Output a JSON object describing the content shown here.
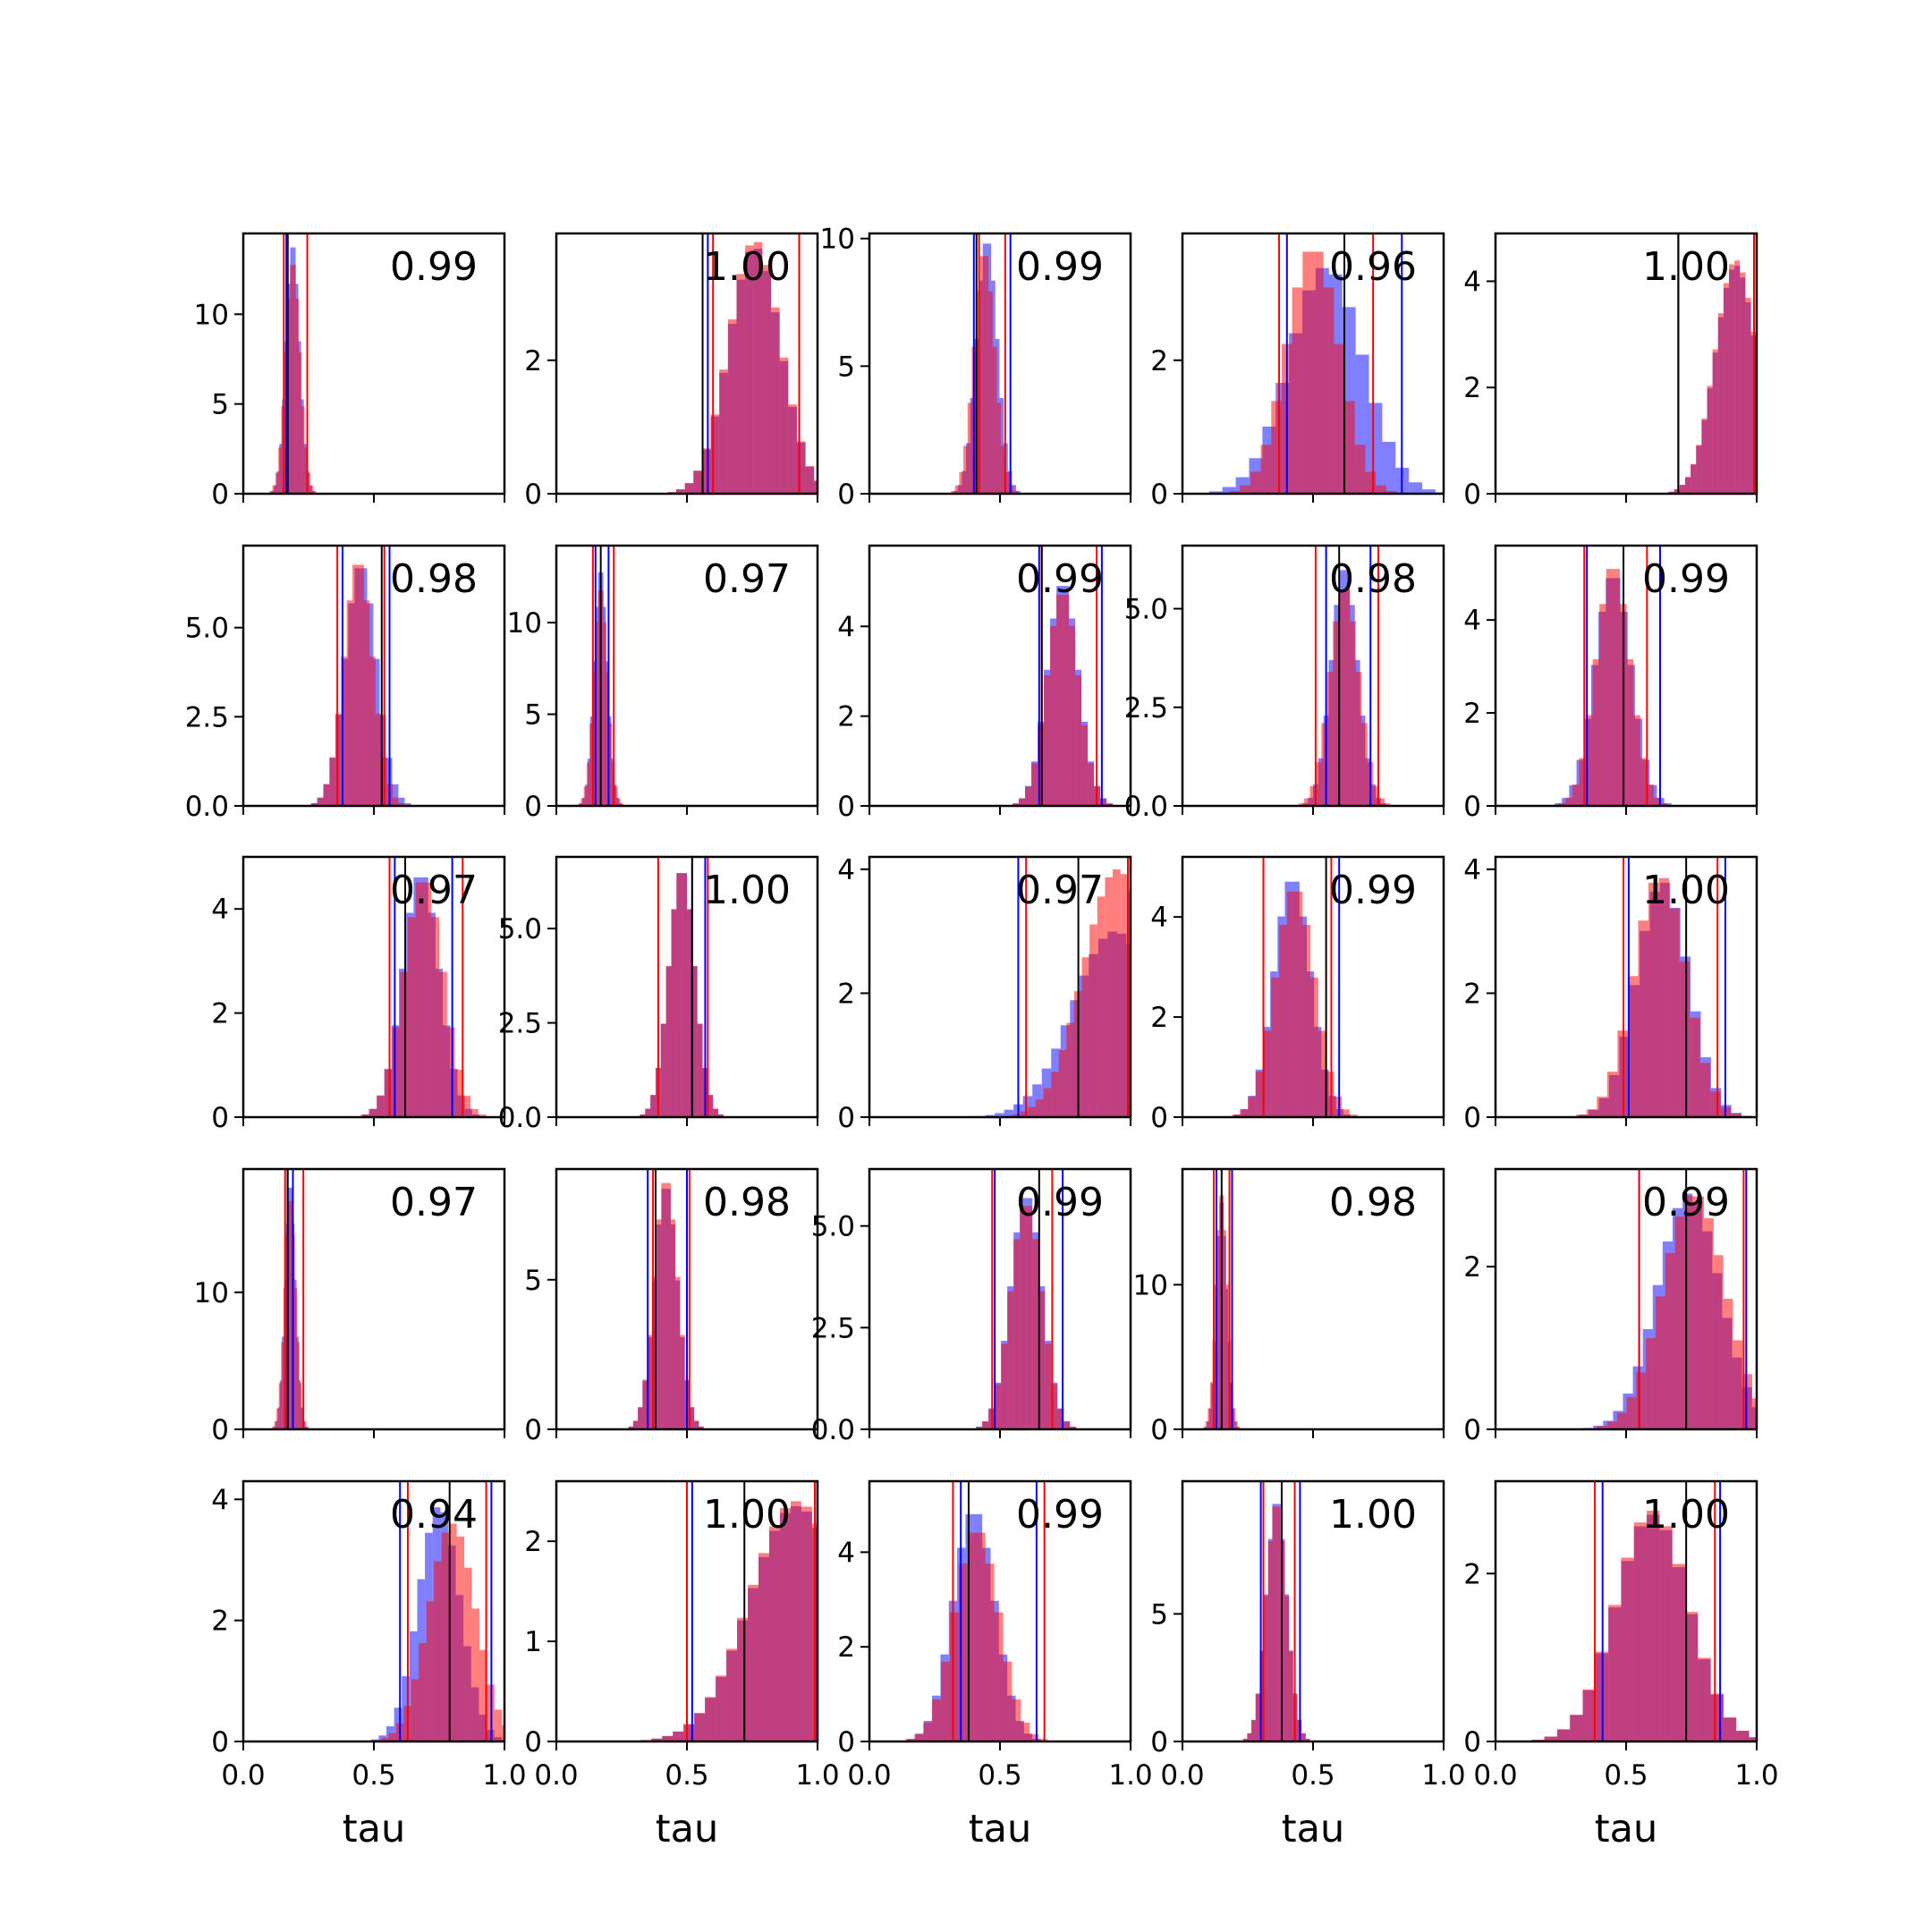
{
  "chart_data": {
    "type": "bar",
    "description_grid": "5 x 5 grid of overlaid histograms",
    "xlabel": "tau",
    "xlim": [
      0,
      1
    ],
    "x_ticks": [
      "0.0",
      "0.5",
      "1.0"
    ],
    "grid": false,
    "colors": {
      "blue": "#0000ff",
      "red": "#ff0000",
      "overlap": "#c0396b",
      "mean_line": "#000000"
    },
    "panels": [
      {
        "label": "0.99",
        "ylim": [
          0,
          14.5
        ],
        "yticks": [
          0,
          5,
          10
        ],
        "ytick_labels": [
          "0",
          "5",
          "10"
        ],
        "blue": {
          "center": 0.19,
          "sd": 0.026,
          "peak": 14.0
        },
        "red": {
          "center": 0.19,
          "sd": 0.028,
          "peak": 13.0
        },
        "blue_lines": [
          0.165,
          0.17
        ],
        "red_lines": [
          0.155,
          0.245
        ],
        "mean": 0.17
      },
      {
        "label": "1.00",
        "ylim": [
          0,
          3.9
        ],
        "yticks": [
          0,
          2
        ],
        "ytick_labels": [
          "0",
          "2"
        ],
        "blue": {
          "center": 0.76,
          "sd": 0.1,
          "peak": 3.7
        },
        "red": {
          "center": 0.76,
          "sd": 0.1,
          "peak": 3.8
        },
        "blue_lines": [
          0.58,
          0.93
        ],
        "red_lines": [
          0.6,
          0.93
        ],
        "mean": 0.56
      },
      {
        "label": "0.99",
        "ylim": [
          0,
          10.2
        ],
        "yticks": [
          0,
          5,
          10
        ],
        "ytick_labels": [
          "0",
          "5",
          "10"
        ],
        "blue": {
          "center": 0.45,
          "sd": 0.04,
          "peak": 10.0
        },
        "red": {
          "center": 0.44,
          "sd": 0.04,
          "peak": 9.5
        },
        "blue_lines": [
          0.4,
          0.54
        ],
        "red_lines": [
          0.42,
          0.52
        ],
        "mean": 0.41
      },
      {
        "label": "0.96",
        "ylim": [
          0,
          3.9
        ],
        "yticks": [
          0,
          2
        ],
        "ytick_labels": [
          "0",
          "2"
        ],
        "blue": {
          "center": 0.55,
          "sd": 0.14,
          "peak": 3.4
        },
        "red": {
          "center": 0.5,
          "sd": 0.1,
          "peak": 3.7
        },
        "blue_lines": [
          0.4,
          0.84
        ],
        "red_lines": [
          0.37,
          0.73
        ],
        "mean": 0.62
      },
      {
        "label": "1.00",
        "ylim": [
          0,
          4.9
        ],
        "yticks": [
          0,
          2,
          4
        ],
        "ytick_labels": [
          "0",
          "2",
          "4"
        ],
        "blue": {
          "center": 0.92,
          "sd": 0.08,
          "peak": 4.3
        },
        "red": {
          "center": 0.92,
          "sd": 0.08,
          "peak": 4.4
        },
        "blue_lines": [
          0.7,
          0.99
        ],
        "red_lines": [
          0.7,
          0.99
        ],
        "mean": 0.7
      },
      {
        "label": "0.98",
        "ylim": [
          0,
          7.3
        ],
        "yticks": [
          0,
          2.5,
          5.0
        ],
        "ytick_labels": [
          "0.0",
          "2.5",
          "5.0"
        ],
        "blue": {
          "center": 0.45,
          "sd": 0.06,
          "peak": 6.8
        },
        "red": {
          "center": 0.44,
          "sd": 0.055,
          "peak": 6.9
        },
        "blue_lines": [
          0.38,
          0.56
        ],
        "red_lines": [
          0.36,
          0.54
        ],
        "mean": 0.53
      },
      {
        "label": "0.97",
        "ylim": [
          0,
          14.2
        ],
        "yticks": [
          0,
          5,
          10
        ],
        "ytick_labels": [
          "0",
          "5",
          "10"
        ],
        "blue": {
          "center": 0.17,
          "sd": 0.025,
          "peak": 13.0
        },
        "red": {
          "center": 0.17,
          "sd": 0.027,
          "peak": 12.0
        },
        "blue_lines": [
          0.15,
          0.2
        ],
        "red_lines": [
          0.14,
          0.22
        ],
        "mean": 0.17
      },
      {
        "label": "0.99",
        "ylim": [
          0,
          5.8
        ],
        "yticks": [
          0,
          2,
          4
        ],
        "ytick_labels": [
          "0",
          "2",
          "4"
        ],
        "blue": {
          "center": 0.74,
          "sd": 0.06,
          "peak": 5.0
        },
        "red": {
          "center": 0.74,
          "sd": 0.06,
          "peak": 4.8
        },
        "blue_lines": [
          0.65,
          0.89
        ],
        "red_lines": [
          0.66,
          0.87
        ],
        "mean": 0.66
      },
      {
        "label": "0.98",
        "ylim": [
          0,
          6.6
        ],
        "yticks": [
          0,
          2.5,
          5.0
        ],
        "ytick_labels": [
          "0.0",
          "2.5",
          "5.0"
        ],
        "blue": {
          "center": 0.62,
          "sd": 0.05,
          "peak": 6.1
        },
        "red": {
          "center": 0.62,
          "sd": 0.055,
          "peak": 5.6
        },
        "blue_lines": [
          0.55,
          0.72
        ],
        "red_lines": [
          0.51,
          0.75
        ],
        "mean": 0.6
      },
      {
        "label": "0.99",
        "ylim": [
          0,
          5.6
        ],
        "yticks": [
          0,
          2,
          4
        ],
        "ytick_labels": [
          "0",
          "2",
          "4"
        ],
        "blue": {
          "center": 0.45,
          "sd": 0.07,
          "peak": 5.0
        },
        "red": {
          "center": 0.45,
          "sd": 0.065,
          "peak": 5.2
        },
        "blue_lines": [
          0.35,
          0.63
        ],
        "red_lines": [
          0.34,
          0.58
        ],
        "mean": 0.49
      },
      {
        "label": "0.97",
        "ylim": [
          0,
          5.0
        ],
        "yticks": [
          0,
          2,
          4
        ],
        "ytick_labels": [
          "0",
          "2",
          "4"
        ],
        "blue": {
          "center": 0.68,
          "sd": 0.07,
          "peak": 4.7
        },
        "red": {
          "center": 0.69,
          "sd": 0.075,
          "peak": 4.6
        },
        "blue_lines": [
          0.58,
          0.8
        ],
        "red_lines": [
          0.56,
          0.84
        ],
        "mean": 0.62
      },
      {
        "label": "1.00",
        "ylim": [
          0,
          6.9
        ],
        "yticks": [
          0,
          2.5,
          5.0
        ],
        "ytick_labels": [
          "0.0",
          "2.5",
          "5.0"
        ],
        "blue": {
          "center": 0.48,
          "sd": 0.05,
          "peak": 6.6
        },
        "red": {
          "center": 0.48,
          "sd": 0.05,
          "peak": 6.6
        },
        "blue_lines": [
          0.52,
          0.57
        ],
        "red_lines": [
          0.39,
          0.58
        ],
        "mean": 0.52
      },
      {
        "label": "0.97",
        "ylim": [
          0,
          4.2
        ],
        "yticks": [
          0,
          2,
          4
        ],
        "ytick_labels": [
          "0",
          "2",
          "4"
        ],
        "blue": {
          "center": 0.94,
          "sd": 0.16,
          "peak": 3.0
        },
        "red": {
          "center": 0.95,
          "sd": 0.13,
          "peak": 4.0
        },
        "blue_lines": [
          0.57,
          0.99
        ],
        "red_lines": [
          0.6,
          0.99
        ],
        "mean": 0.8
      },
      {
        "label": "0.99",
        "ylim": [
          0,
          5.2
        ],
        "yticks": [
          0,
          2,
          4
        ],
        "ytick_labels": [
          "0",
          "2",
          "4"
        ],
        "blue": {
          "center": 0.42,
          "sd": 0.07,
          "peak": 4.8
        },
        "red": {
          "center": 0.43,
          "sd": 0.075,
          "peak": 4.6
        },
        "blue_lines": [
          0.31,
          0.6
        ],
        "red_lines": [
          0.31,
          0.57
        ],
        "mean": 0.55
      },
      {
        "label": "1.00",
        "ylim": [
          0,
          4.2
        ],
        "yticks": [
          0,
          2,
          4
        ],
        "ytick_labels": [
          "0",
          "2",
          "4"
        ],
        "blue": {
          "center": 0.64,
          "sd": 0.1,
          "peak": 3.8
        },
        "red": {
          "center": 0.63,
          "sd": 0.1,
          "peak": 3.9
        },
        "blue_lines": [
          0.51,
          0.88
        ],
        "red_lines": [
          0.49,
          0.85
        ],
        "mean": 0.73
      },
      {
        "label": "0.97",
        "ylim": [
          0,
          19
        ],
        "yticks": [
          0,
          10
        ],
        "ytick_labels": [
          "0",
          "10"
        ],
        "blue": {
          "center": 0.18,
          "sd": 0.02,
          "peak": 18.0
        },
        "red": {
          "center": 0.18,
          "sd": 0.022,
          "peak": 17.0
        },
        "blue_lines": [
          0.17,
          0.19
        ],
        "red_lines": [
          0.16,
          0.23
        ],
        "mean": 0.17
      },
      {
        "label": "0.98",
        "ylim": [
          0,
          8.7
        ],
        "yticks": [
          0,
          5
        ],
        "ytick_labels": [
          "0",
          "5"
        ],
        "blue": {
          "center": 0.42,
          "sd": 0.045,
          "peak": 8.2
        },
        "red": {
          "center": 0.42,
          "sd": 0.045,
          "peak": 8.4
        },
        "blue_lines": [
          0.35,
          0.5
        ],
        "red_lines": [
          0.37,
          0.51
        ],
        "mean": 0.38
      },
      {
        "label": "0.99",
        "ylim": [
          0,
          6.4
        ],
        "yticks": [
          0,
          2.5,
          5.0
        ],
        "ytick_labels": [
          "0.0",
          "2.5",
          "5.0"
        ],
        "blue": {
          "center": 0.6,
          "sd": 0.06,
          "peak": 5.8
        },
        "red": {
          "center": 0.6,
          "sd": 0.06,
          "peak": 5.6
        },
        "blue_lines": [
          0.48,
          0.74
        ],
        "red_lines": [
          0.47,
          0.7
        ],
        "mean": 0.65
      },
      {
        "label": "0.98",
        "ylim": [
          0,
          18
        ],
        "yticks": [
          0,
          10
        ],
        "ytick_labels": [
          "0",
          "10"
        ],
        "blue": {
          "center": 0.15,
          "sd": 0.02,
          "peak": 16.0
        },
        "red": {
          "center": 0.15,
          "sd": 0.022,
          "peak": 16.5
        },
        "blue_lines": [
          0.13,
          0.19
        ],
        "red_lines": [
          0.12,
          0.18
        ],
        "mean": 0.15
      },
      {
        "label": "0.99",
        "ylim": [
          0,
          3.2
        ],
        "yticks": [
          0,
          2
        ],
        "ytick_labels": [
          "0",
          "2"
        ],
        "blue": {
          "center": 0.74,
          "sd": 0.12,
          "peak": 2.9
        },
        "red": {
          "center": 0.76,
          "sd": 0.12,
          "peak": 2.9
        },
        "blue_lines": [
          0.55,
          0.96
        ],
        "red_lines": [
          0.55,
          0.95
        ],
        "mean": 0.73
      },
      {
        "label": "0.94",
        "ylim": [
          0,
          4.3
        ],
        "yticks": [
          0,
          2,
          4
        ],
        "ytick_labels": [
          "0",
          "2",
          "4"
        ],
        "blue": {
          "center": 0.75,
          "sd": 0.08,
          "peak": 3.9
        },
        "red": {
          "center": 0.8,
          "sd": 0.09,
          "peak": 3.6
        },
        "blue_lines": [
          0.6,
          0.95
        ],
        "red_lines": [
          0.63,
          0.93
        ],
        "mean": 0.79
      },
      {
        "label": "1.00",
        "ylim": [
          0,
          2.6
        ],
        "yticks": [
          0,
          1,
          2
        ],
        "ytick_labels": [
          "0",
          "1",
          "2"
        ],
        "blue": {
          "center": 0.92,
          "sd": 0.18,
          "peak": 2.35
        },
        "red": {
          "center": 0.92,
          "sd": 0.18,
          "peak": 2.4
        },
        "blue_lines": [
          0.52,
          0.99
        ],
        "red_lines": [
          0.5,
          0.99
        ],
        "mean": 0.72
      },
      {
        "label": "0.99",
        "ylim": [
          0,
          5.5
        ],
        "yticks": [
          0,
          2,
          4
        ],
        "ytick_labels": [
          "0",
          "2",
          "4"
        ],
        "blue": {
          "center": 0.4,
          "sd": 0.08,
          "peak": 4.9
        },
        "red": {
          "center": 0.41,
          "sd": 0.085,
          "peak": 4.5
        },
        "blue_lines": [
          0.35,
          0.64
        ],
        "red_lines": [
          0.32,
          0.67
        ],
        "mean": 0.38
      },
      {
        "label": "1.00",
        "ylim": [
          0,
          10.2
        ],
        "yticks": [
          0,
          5
        ],
        "ytick_labels": [
          "0",
          "5"
        ],
        "blue": {
          "center": 0.36,
          "sd": 0.04,
          "peak": 9.5
        },
        "red": {
          "center": 0.36,
          "sd": 0.04,
          "peak": 9.4
        },
        "blue_lines": [
          0.3,
          0.45
        ],
        "red_lines": [
          0.31,
          0.43
        ],
        "mean": 0.38
      },
      {
        "label": "1.00",
        "ylim": [
          0,
          3.1
        ],
        "yticks": [
          0,
          2
        ],
        "ytick_labels": [
          "0",
          "2"
        ],
        "blue": {
          "center": 0.6,
          "sd": 0.14,
          "peak": 2.7
        },
        "red": {
          "center": 0.6,
          "sd": 0.14,
          "peak": 2.75
        },
        "blue_lines": [
          0.41,
          0.86
        ],
        "red_lines": [
          0.38,
          0.84
        ],
        "mean": 0.73
      }
    ]
  }
}
